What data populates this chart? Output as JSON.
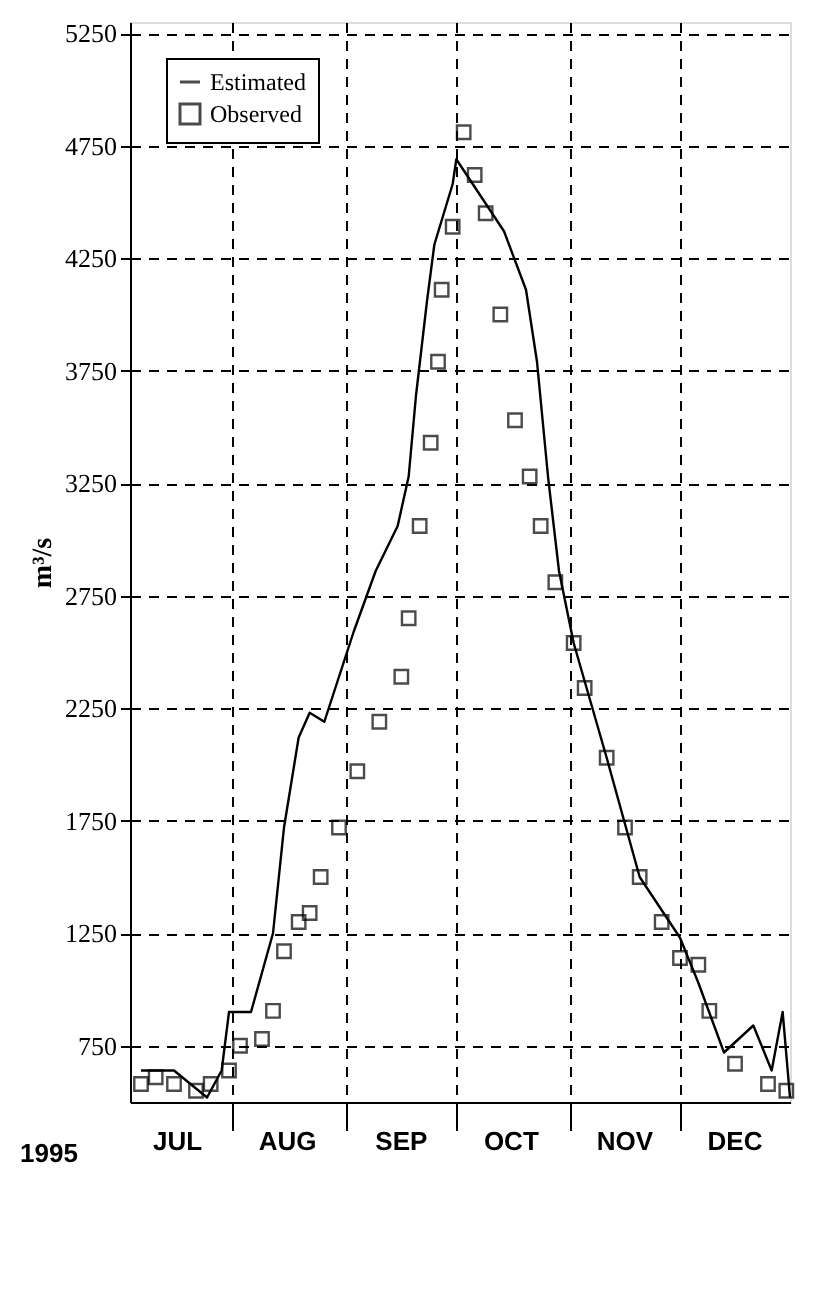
{
  "chart_data": {
    "type": "line",
    "ylabel": "m³/s",
    "annotations": [
      "1995"
    ],
    "xlim": [
      "1995-07-04",
      "1995-12-31"
    ],
    "xticks": [
      {
        "value": "1995-08-01",
        "label": null
      },
      {
        "value": "1995-09-01",
        "label": null
      },
      {
        "value": "1995-10-01",
        "label": null
      },
      {
        "value": "1995-11-01",
        "label": null
      },
      {
        "value": "1995-12-01",
        "label": null
      },
      {
        "value": "1995-07-17",
        "label": "JUL"
      },
      {
        "value": "1995-08-16",
        "label": "AUG"
      },
      {
        "value": "1995-09-16",
        "label": "SEP"
      },
      {
        "value": "1995-10-16",
        "label": "OCT"
      },
      {
        "value": "1995-11-16",
        "label": "NOV"
      },
      {
        "value": "1995-12-16",
        "label": "DEC"
      }
    ],
    "ylim": [
      500,
      5300
    ],
    "yticks": [
      750,
      1250,
      1750,
      2250,
      2750,
      3250,
      3750,
      4250,
      4750,
      5250
    ],
    "grid": true,
    "legend": "top left",
    "series": [
      {
        "name": "Estimated",
        "marker": "none",
        "line_style": "solid",
        "color": "#000000",
        "x": [
          "1995-07-07",
          "1995-07-16",
          "1995-07-25",
          "1995-07-29",
          "1995-07-31",
          "1995-08-06",
          "1995-08-12",
          "1995-08-15",
          "1995-08-19",
          "1995-08-22",
          "1995-08-26",
          "1995-08-29",
          "1995-09-03",
          "1995-09-09",
          "1995-09-15",
          "1995-09-18",
          "1995-09-20",
          "1995-09-23",
          "1995-09-25",
          "1995-09-30",
          "1995-10-01",
          "1995-10-14",
          "1995-10-20",
          "1995-10-23",
          "1995-10-26",
          "1995-10-29",
          "1995-11-02",
          "1995-11-11",
          "1995-11-20",
          "1995-12-01",
          "1995-12-06",
          "1995-12-13",
          "1995-12-21",
          "1995-12-26",
          "1995-12-29",
          "1995-12-31"
        ],
        "values": [
          640,
          640,
          520,
          640,
          900,
          900,
          1250,
          1720,
          2120,
          2230,
          2190,
          2340,
          2590,
          2860,
          3060,
          3280,
          3640,
          4060,
          4310,
          4580,
          4690,
          4370,
          4110,
          3790,
          3280,
          2860,
          2540,
          2030,
          1500,
          1230,
          1030,
          720,
          840,
          640,
          900,
          520
        ]
      },
      {
        "name": "Observed",
        "type": "scatter",
        "marker": "square",
        "color": "#000000",
        "x": [
          "1995-07-07",
          "1995-07-11",
          "1995-07-16",
          "1995-07-22",
          "1995-07-26",
          "1995-07-31",
          "1995-08-03",
          "1995-08-09",
          "1995-08-12",
          "1995-08-15",
          "1995-08-19",
          "1995-08-22",
          "1995-08-25",
          "1995-08-30",
          "1995-09-04",
          "1995-09-10",
          "1995-09-16",
          "1995-09-18",
          "1995-09-21",
          "1995-09-24",
          "1995-09-26",
          "1995-09-27",
          "1995-09-30",
          "1995-10-03",
          "1995-10-06",
          "1995-10-09",
          "1995-10-13",
          "1995-10-17",
          "1995-10-21",
          "1995-10-24",
          "1995-10-28",
          "1995-11-02",
          "1995-11-05",
          "1995-11-11",
          "1995-11-16",
          "1995-11-20",
          "1995-11-26",
          "1995-12-01",
          "1995-12-06",
          "1995-12-09",
          "1995-12-16",
          "1995-12-25",
          "1995-12-30"
        ],
        "values": [
          580,
          610,
          580,
          550,
          580,
          640,
          750,
          780,
          905,
          1170,
          1300,
          1340,
          1500,
          1720,
          1970,
          2190,
          2390,
          2650,
          3060,
          3430,
          3790,
          4110,
          4390,
          4810,
          4620,
          4450,
          4000,
          3530,
          3280,
          3060,
          2810,
          2540,
          2340,
          2030,
          1720,
          1500,
          1300,
          1140,
          1110,
          905,
          670,
          580,
          550
        ]
      }
    ]
  }
}
